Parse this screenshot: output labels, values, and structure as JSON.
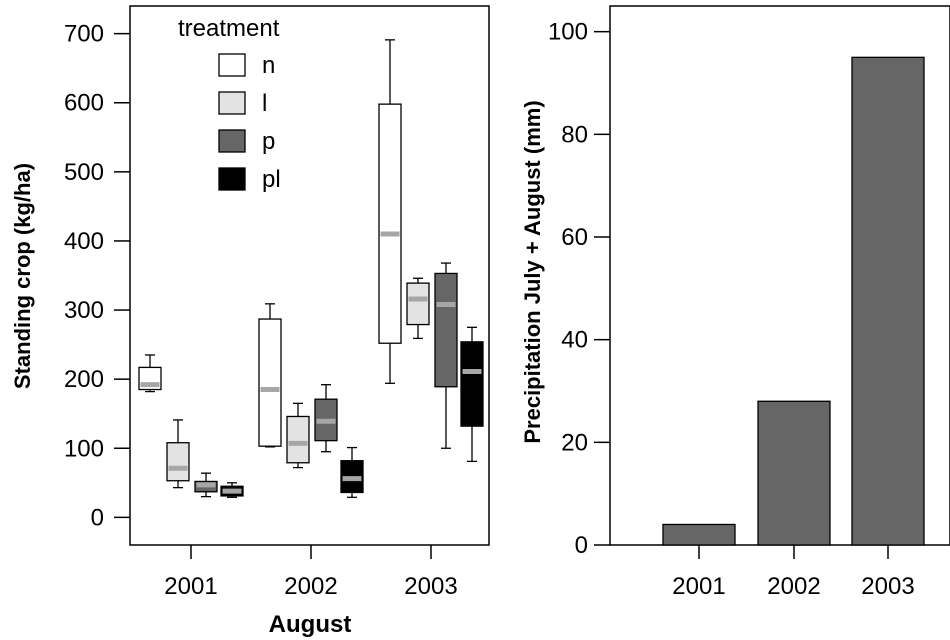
{
  "chart_data": [
    {
      "type": "box",
      "ylabel": "Standing crop (kg/ha)",
      "xlabel": "August",
      "categories": [
        "2001",
        "2002",
        "2003"
      ],
      "ylim": [
        -40,
        740
      ],
      "yticks": [
        0,
        100,
        200,
        300,
        400,
        500,
        600,
        700
      ],
      "grid": false,
      "legend": {
        "title": "treatment",
        "placement": "top-left",
        "entries": [
          {
            "label": "n",
            "color": "#ffffff"
          },
          {
            "label": "l",
            "color": "#e3e3e3"
          },
          {
            "label": "p",
            "color": "#666666"
          },
          {
            "label": "pl",
            "color": "#000000"
          }
        ]
      },
      "median_color": "#a6a6a6",
      "boxes": [
        {
          "category": "2001",
          "treatment": "n",
          "min": 182,
          "q1": 185,
          "median": 192,
          "q3": 217,
          "max": 235
        },
        {
          "category": "2001",
          "treatment": "l",
          "min": 43,
          "q1": 53,
          "median": 71,
          "q3": 108,
          "max": 141
        },
        {
          "category": "2001",
          "treatment": "p",
          "min": 30,
          "q1": 37,
          "median": 47,
          "q3": 52,
          "max": 64
        },
        {
          "category": "2001",
          "treatment": "pl",
          "min": 29,
          "q1": 31,
          "median": 38,
          "q3": 45,
          "max": 50
        },
        {
          "category": "2002",
          "treatment": "n",
          "min": 102,
          "q1": 103,
          "median": 185,
          "q3": 287,
          "max": 309
        },
        {
          "category": "2002",
          "treatment": "l",
          "min": 72,
          "q1": 79,
          "median": 107,
          "q3": 146,
          "max": 165
        },
        {
          "category": "2002",
          "treatment": "p",
          "min": 95,
          "q1": 111,
          "median": 139,
          "q3": 171,
          "max": 192
        },
        {
          "category": "2002",
          "treatment": "pl",
          "min": 29,
          "q1": 36,
          "median": 56,
          "q3": 82,
          "max": 101
        },
        {
          "category": "2003",
          "treatment": "n",
          "min": 194,
          "q1": 252,
          "median": 410,
          "q3": 598,
          "max": 691
        },
        {
          "category": "2003",
          "treatment": "l",
          "min": 259,
          "q1": 279,
          "median": 316,
          "q3": 339,
          "max": 346
        },
        {
          "category": "2003",
          "treatment": "p",
          "min": 100,
          "q1": 189,
          "median": 308,
          "q3": 353,
          "max": 368
        },
        {
          "category": "2003",
          "treatment": "pl",
          "min": 81,
          "q1": 132,
          "median": 211,
          "q3": 254,
          "max": 275
        }
      ]
    },
    {
      "type": "bar",
      "ylabel": "Precipitation July + August (mm)",
      "xlabel": "",
      "categories": [
        "2001",
        "2002",
        "2003"
      ],
      "values": [
        4,
        28,
        95
      ],
      "ylim": [
        0,
        105
      ],
      "yticks": [
        0,
        20,
        40,
        60,
        80,
        100
      ],
      "bar_color": "#666666",
      "grid": false
    }
  ]
}
